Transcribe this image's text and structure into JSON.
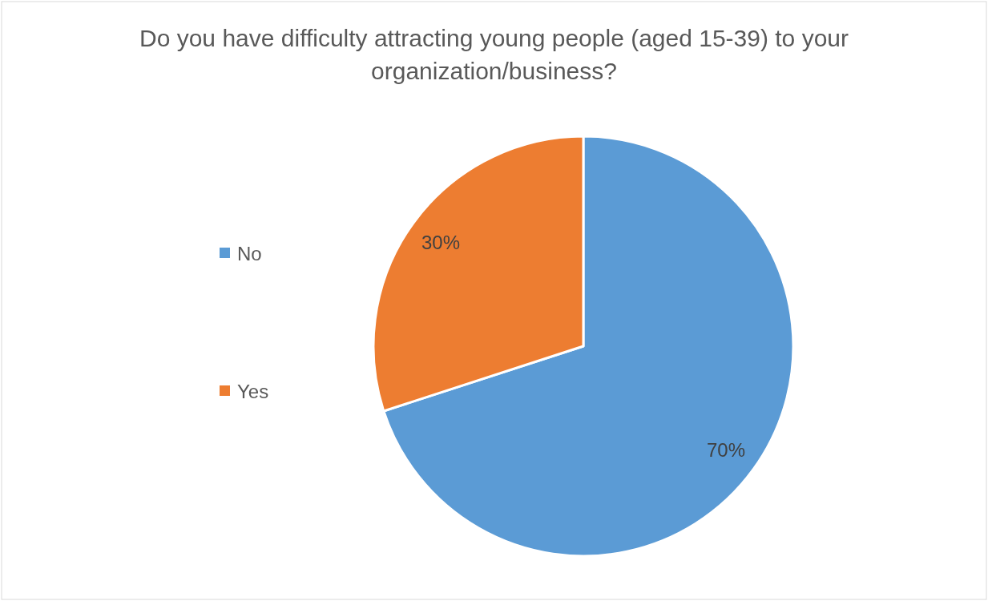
{
  "chart_data": {
    "type": "pie",
    "title": "Do you have difficulty attracting young people (aged 15-39) to your organization/business?",
    "categories": [
      "No",
      "Yes"
    ],
    "values": [
      70,
      30
    ],
    "colors": [
      "#5b9bd5",
      "#ed7d31"
    ],
    "value_labels": [
      "70%",
      "30%"
    ],
    "legend": "left"
  }
}
